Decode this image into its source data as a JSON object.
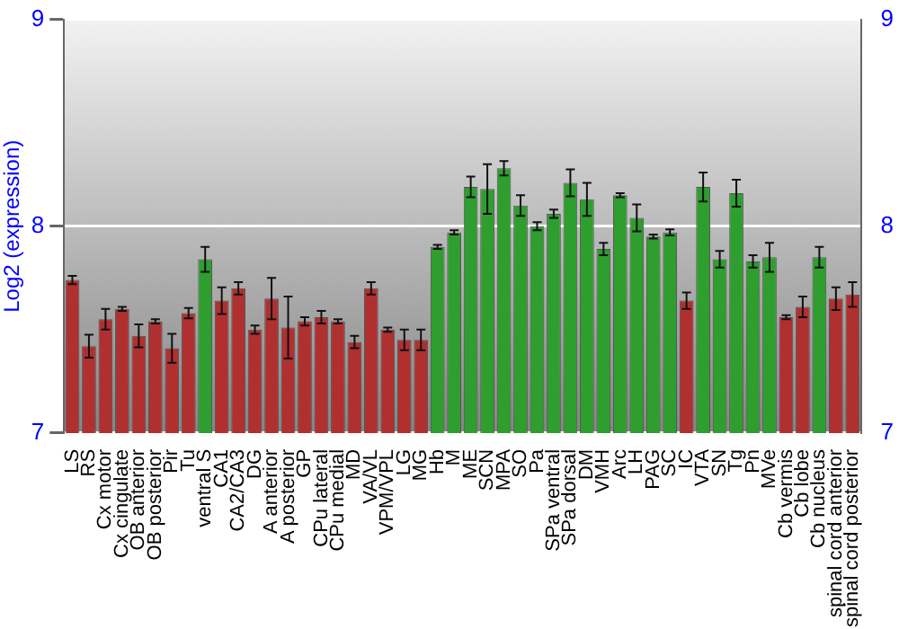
{
  "chart_data": {
    "type": "bar",
    "ylabel": "Log2 (expression)",
    "categories": [
      "LS",
      "RS",
      "Cx motor",
      "Cx cingulate",
      "OB anterior",
      "OB posterior",
      "Pir",
      "Tu",
      "ventral S",
      "CA1",
      "CA2/CA3",
      "DG",
      "A anterior",
      "A posterior",
      "GP",
      "CPu lateral",
      "CPu medial",
      "MD",
      "VA/VL",
      "VPM/VPL",
      "LG",
      "MG",
      "Hb",
      "M",
      "ME",
      "SCN",
      "MPA",
      "SO",
      "Pa",
      "SPa ventral",
      "SPa dorsal",
      "DM",
      "VMH",
      "Arc",
      "LH",
      "PAG",
      "SC",
      "IC",
      "VTA",
      "SN",
      "Tg",
      "Pn",
      "MVe",
      "Cb vermis",
      "Cb lobe",
      "Cb nucleus",
      "spinal cord anterior",
      "spinal cord posterior"
    ],
    "values": [
      7.74,
      7.42,
      7.55,
      7.6,
      7.47,
      7.54,
      7.41,
      7.58,
      7.84,
      7.64,
      7.7,
      7.5,
      7.65,
      7.51,
      7.54,
      7.56,
      7.54,
      7.44,
      7.7,
      7.5,
      7.45,
      7.45,
      7.9,
      7.97,
      8.19,
      8.18,
      8.28,
      8.1,
      8.0,
      8.06,
      8.21,
      8.13,
      7.89,
      8.15,
      8.04,
      7.95,
      7.97,
      7.64,
      8.19,
      7.84,
      8.16,
      7.83,
      7.85,
      7.56,
      7.61,
      7.85,
      7.65,
      7.67
    ],
    "errors": [
      0.02,
      0.055,
      0.05,
      0.01,
      0.055,
      0.01,
      0.07,
      0.025,
      0.06,
      0.065,
      0.03,
      0.02,
      0.1,
      0.15,
      0.02,
      0.03,
      0.01,
      0.03,
      0.03,
      0.01,
      0.05,
      0.05,
      0.01,
      0.01,
      0.05,
      0.12,
      0.035,
      0.05,
      0.02,
      0.02,
      0.065,
      0.08,
      0.03,
      0.01,
      0.065,
      0.01,
      0.015,
      0.04,
      0.07,
      0.04,
      0.065,
      0.03,
      0.07,
      0.01,
      0.05,
      0.05,
      0.055,
      0.06
    ],
    "colors": [
      "#b03030",
      "#b03030",
      "#b03030",
      "#b03030",
      "#b03030",
      "#b03030",
      "#b03030",
      "#b03030",
      "#2e9e2e",
      "#b03030",
      "#b03030",
      "#b03030",
      "#b03030",
      "#b03030",
      "#b03030",
      "#b03030",
      "#b03030",
      "#b03030",
      "#b03030",
      "#b03030",
      "#b03030",
      "#b03030",
      "#2e9e2e",
      "#2e9e2e",
      "#2e9e2e",
      "#2e9e2e",
      "#2e9e2e",
      "#2e9e2e",
      "#2e9e2e",
      "#2e9e2e",
      "#2e9e2e",
      "#2e9e2e",
      "#2e9e2e",
      "#2e9e2e",
      "#2e9e2e",
      "#2e9e2e",
      "#2e9e2e",
      "#b03030",
      "#2e9e2e",
      "#2e9e2e",
      "#2e9e2e",
      "#2e9e2e",
      "#2e9e2e",
      "#b03030",
      "#b03030",
      "#2e9e2e",
      "#b03030",
      "#b03030"
    ],
    "ylim": [
      7,
      9
    ],
    "yticks": [
      7,
      8,
      9
    ],
    "y2lim": [
      7,
      9
    ],
    "y2ticks": [
      7,
      8,
      9
    ],
    "grid": "y"
  }
}
